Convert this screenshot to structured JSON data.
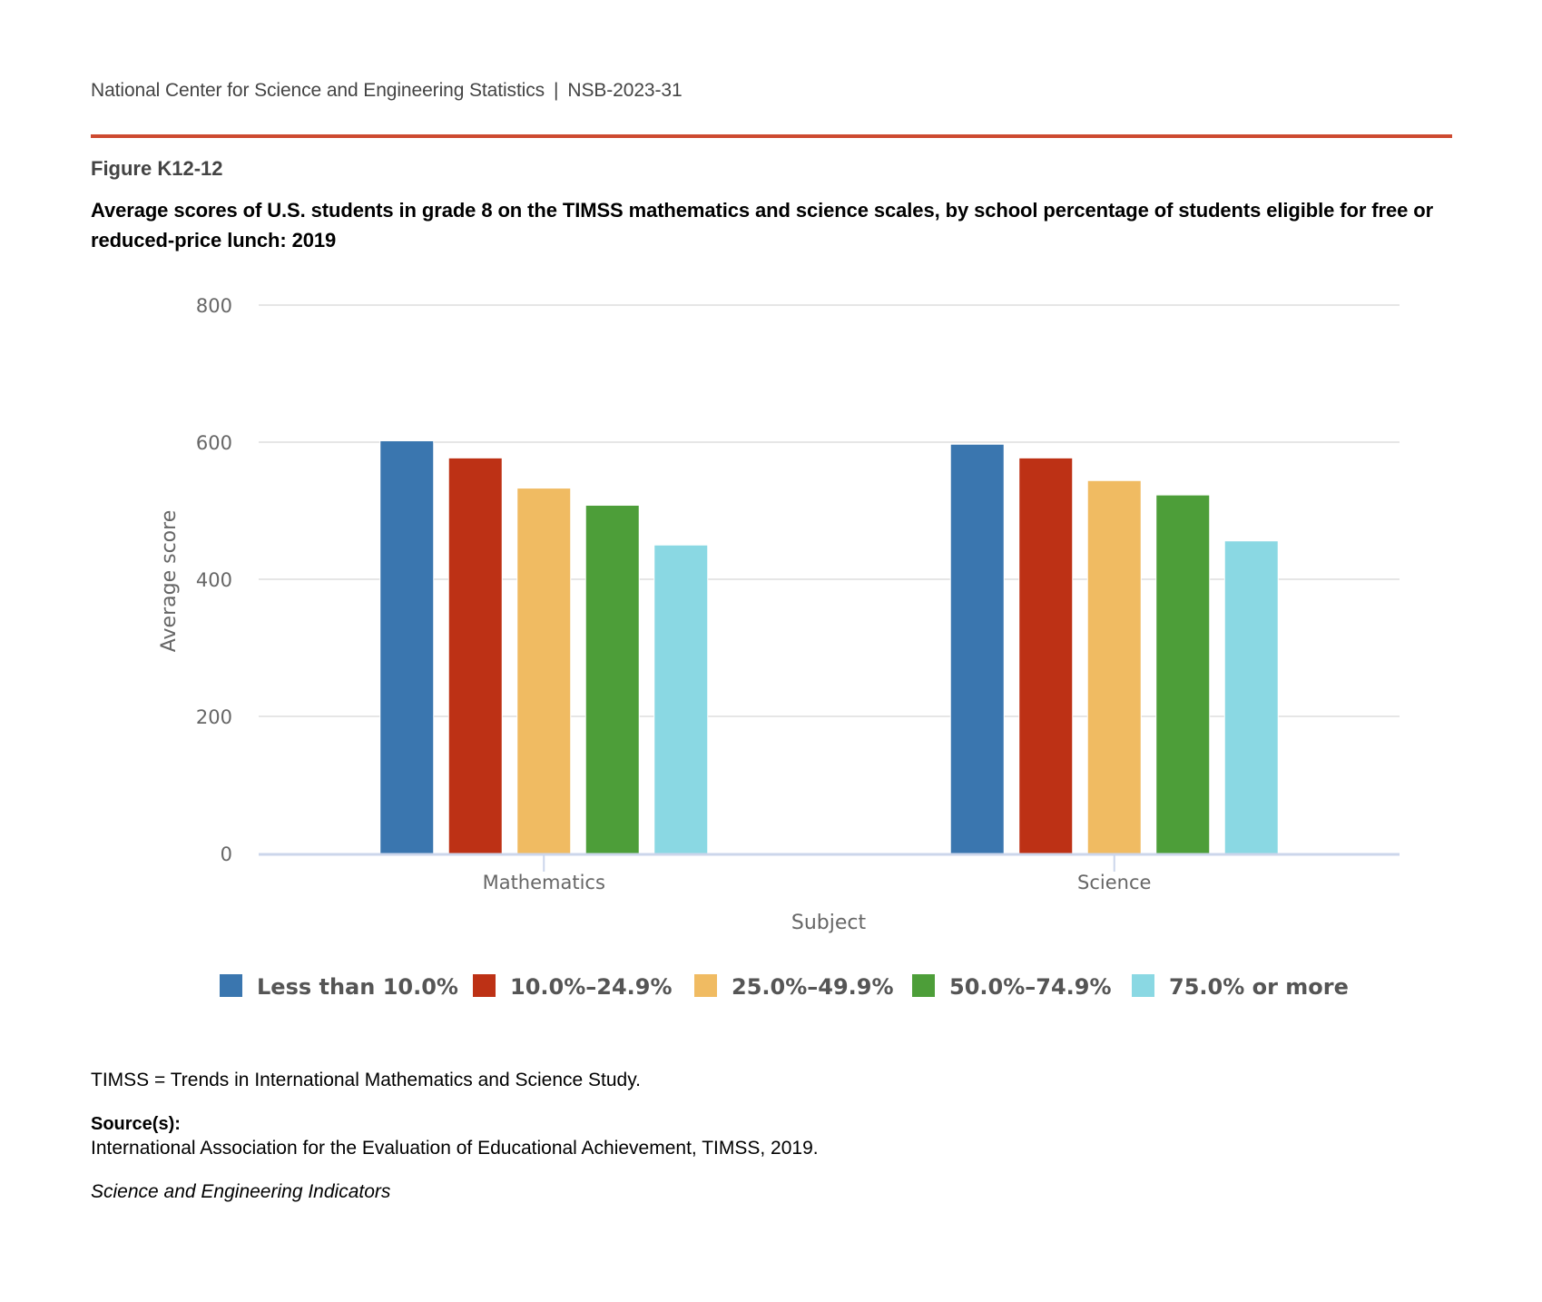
{
  "header": {
    "organization": "National Center for Science and Engineering Statistics",
    "separator": "|",
    "report_id": "NSB-2023-31",
    "accent_color": "#cd4a30"
  },
  "figure": {
    "label": "Figure K12-12",
    "title": "Average scores of U.S. students in grade 8 on the TIMSS mathematics and science scales, by school percentage of students eligible for free or reduced-price lunch: 2019"
  },
  "chart_data": {
    "type": "bar",
    "title": "Average scores of U.S. students in grade 8 on the TIMSS mathematics and science scales, by school percentage of students eligible for free or reduced-price lunch: 2019",
    "xlabel": "Subject",
    "ylabel": "Average score",
    "categories": [
      "Mathematics",
      "Science"
    ],
    "ylim": [
      0,
      800
    ],
    "yticks": [
      0,
      200,
      400,
      600,
      800
    ],
    "grid": true,
    "legend_position": "bottom",
    "series": [
      {
        "name": "Less than 10.0%",
        "color": "#3a76af",
        "values": [
          602,
          597
        ]
      },
      {
        "name": "10.0%–24.9%",
        "color": "#bd3115",
        "values": [
          577,
          577
        ]
      },
      {
        "name": "25.0%–49.9%",
        "color": "#f0bb62",
        "values": [
          533,
          544
        ]
      },
      {
        "name": "50.0%–74.9%",
        "color": "#4d9e39",
        "values": [
          508,
          523
        ]
      },
      {
        "name": "75.0% or more",
        "color": "#8ad8e3",
        "values": [
          450,
          456
        ]
      }
    ]
  },
  "footer": {
    "note": "TIMSS = Trends in International Mathematics and Science Study.",
    "source_label": "Source(s):",
    "source_text": "International Association for the Evaluation of Educational Achievement, TIMSS, 2019.",
    "publication": "Science and Engineering Indicators"
  }
}
